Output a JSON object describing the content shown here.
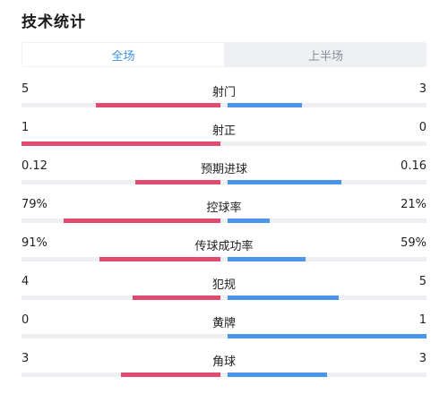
{
  "title": "技术统计",
  "tabs": [
    {
      "label": "全场",
      "active": true
    },
    {
      "label": "上半场",
      "active": false
    }
  ],
  "colors": {
    "home": "#e04b6f",
    "away": "#4a95ea",
    "active_tab": "#3d8fe6"
  },
  "stats": [
    {
      "label": "射门",
      "home": "5",
      "away": "3",
      "home_share": 0.625,
      "away_share": 0.375
    },
    {
      "label": "射正",
      "home": "1",
      "away": "0",
      "home_share": 1.0,
      "away_share": 0.0
    },
    {
      "label": "预期进球",
      "home": "0.12",
      "away": "0.16",
      "home_share": 0.43,
      "away_share": 0.57
    },
    {
      "label": "控球率",
      "home": "79%",
      "away": "21%",
      "home_share": 0.79,
      "away_share": 0.21
    },
    {
      "label": "传球成功率",
      "home": "91%",
      "away": "59%",
      "home_share": 0.61,
      "away_share": 0.39
    },
    {
      "label": "犯规",
      "home": "4",
      "away": "5",
      "home_share": 0.44,
      "away_share": 0.56
    },
    {
      "label": "黄牌",
      "home": "0",
      "away": "1",
      "home_share": 0.0,
      "away_share": 1.0
    },
    {
      "label": "角球",
      "home": "3",
      "away": "3",
      "home_share": 0.5,
      "away_share": 0.5
    }
  ]
}
